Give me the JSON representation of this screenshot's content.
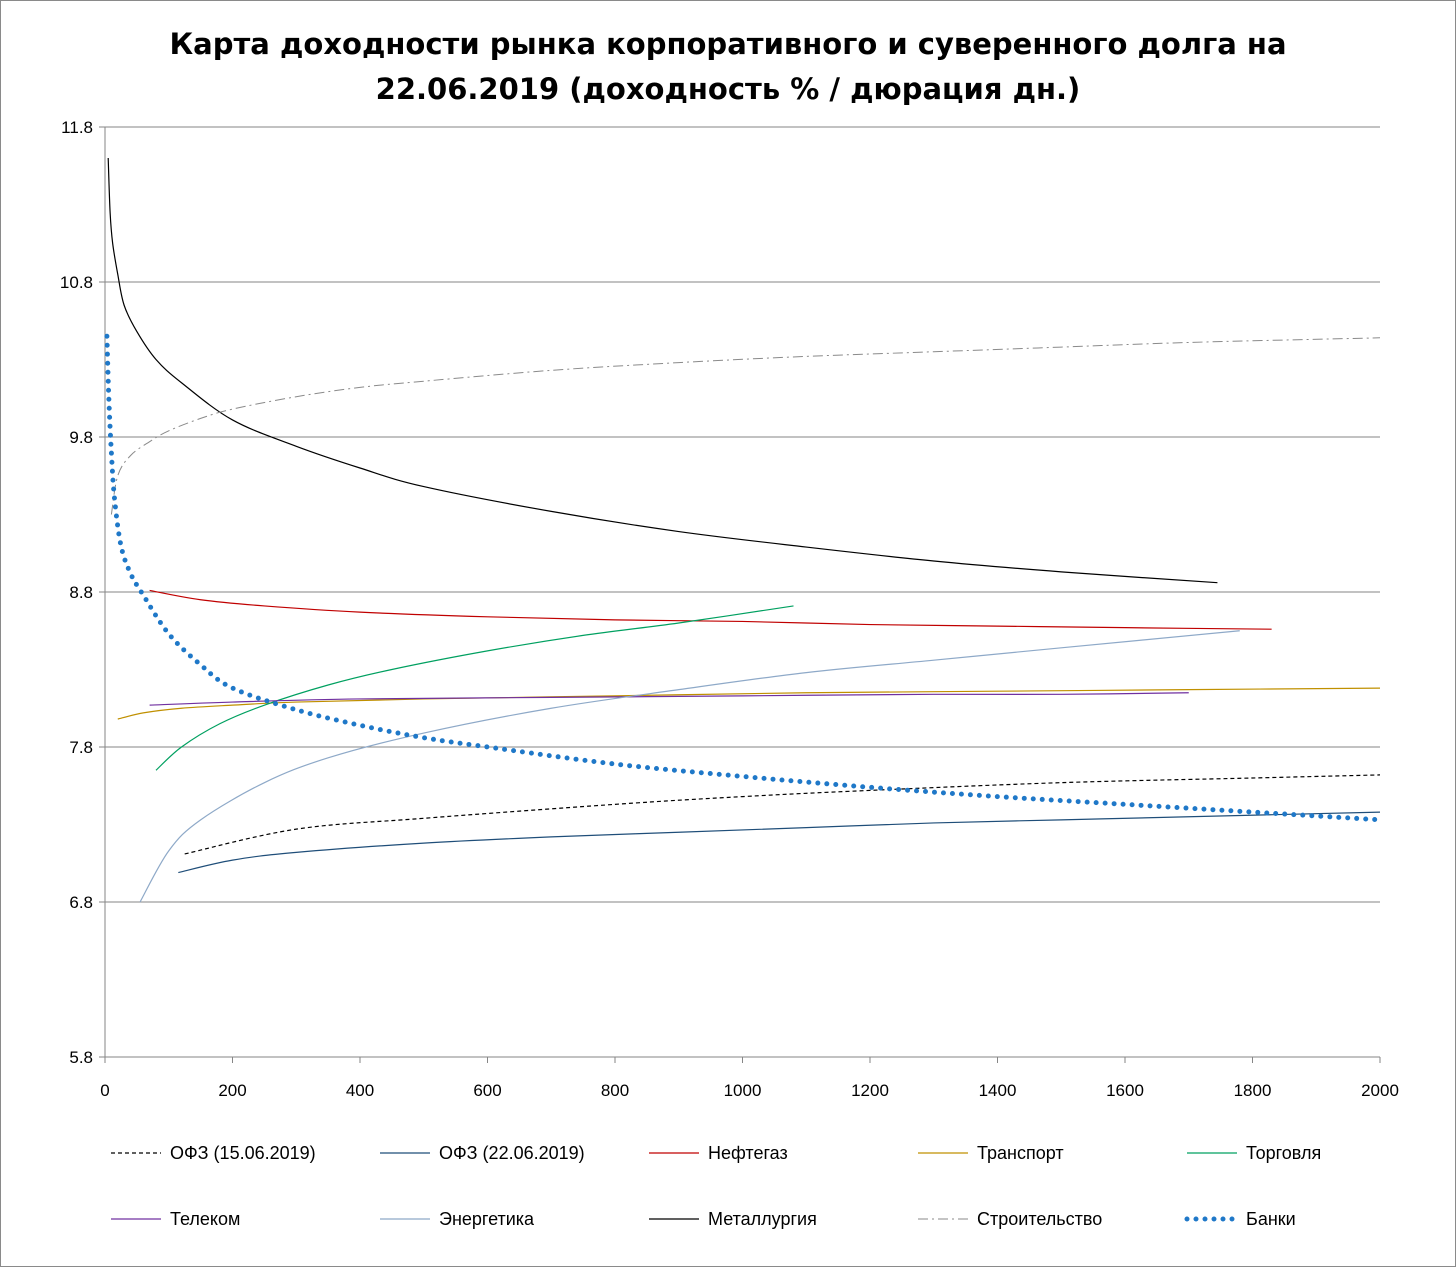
{
  "chart_data": {
    "type": "line",
    "title_lines": [
      "Карта доходности рынка корпоративного и суверенного долга на",
      "22.06.2019 (доходность % / дюрация дн.)"
    ],
    "xlim": [
      0,
      2000
    ],
    "ylim": [
      5.8,
      11.8
    ],
    "x_ticks": [
      "0",
      "200",
      "400",
      "600",
      "800",
      "1000",
      "1200",
      "1400",
      "1600",
      "1800",
      "2000"
    ],
    "y_ticks": [
      "5.8",
      "6.8",
      "7.8",
      "8.8",
      "9.8",
      "10.8",
      "11.8"
    ],
    "grid": "horizontal",
    "legend_position": "bottom",
    "series": [
      {
        "name": "ОФЗ (15.06.2019)",
        "color": "#000000",
        "style": "dashed",
        "x": [
          125,
          300,
          500,
          800,
          1000,
          1200,
          1500,
          1800,
          2000
        ],
        "y": [
          7.11,
          7.27,
          7.34,
          7.43,
          7.48,
          7.52,
          7.57,
          7.6,
          7.62
        ]
      },
      {
        "name": "ОФЗ (22.06.2019)",
        "color": "#1f4e79",
        "style": "solid",
        "x": [
          115,
          200,
          300,
          500,
          700,
          900,
          1100,
          1300,
          1500,
          1700,
          2000
        ],
        "y": [
          6.99,
          7.07,
          7.12,
          7.18,
          7.22,
          7.25,
          7.28,
          7.31,
          7.33,
          7.35,
          7.38
        ]
      },
      {
        "name": "Нефтегаз",
        "color": "#c00000",
        "style": "solid",
        "x": [
          70,
          150,
          250,
          400,
          600,
          800,
          1000,
          1200,
          1400,
          1600,
          1830
        ],
        "y": [
          8.81,
          8.75,
          8.71,
          8.67,
          8.64,
          8.62,
          8.61,
          8.59,
          8.58,
          8.57,
          8.56
        ]
      },
      {
        "name": "Транспорт",
        "color": "#c09000",
        "style": "solid",
        "x": [
          20,
          60,
          120,
          200,
          300,
          500,
          800,
          1100,
          1400,
          1700,
          2000
        ],
        "y": [
          7.98,
          8.02,
          8.05,
          8.07,
          8.09,
          8.11,
          8.13,
          8.15,
          8.16,
          8.17,
          8.18
        ]
      },
      {
        "name": "Торговля",
        "color": "#00a060",
        "style": "solid",
        "x": [
          80,
          120,
          180,
          250,
          350,
          450,
          600,
          750,
          900,
          1080
        ],
        "y": [
          7.65,
          7.8,
          7.95,
          8.07,
          8.2,
          8.3,
          8.42,
          8.52,
          8.6,
          8.71
        ]
      },
      {
        "name": "Телеком",
        "color": "#7030a0",
        "style": "solid",
        "x": [
          70,
          200,
          400,
          700,
          1000,
          1300,
          1500,
          1700
        ],
        "y": [
          8.07,
          8.09,
          8.11,
          8.12,
          8.13,
          8.14,
          8.14,
          8.15
        ]
      },
      {
        "name": "Энергетика",
        "color": "#8ea9c8",
        "style": "solid",
        "x": [
          55,
          100,
          150,
          250,
          350,
          500,
          700,
          900,
          1100,
          1300,
          1500,
          1780
        ],
        "y": [
          6.8,
          7.13,
          7.33,
          7.57,
          7.73,
          7.89,
          8.05,
          8.17,
          8.28,
          8.36,
          8.44,
          8.55
        ]
      },
      {
        "name": "Металлургия",
        "color": "#000000",
        "style": "solid",
        "x": [
          5,
          8,
          12,
          20,
          30,
          50,
          80,
          120,
          200,
          300,
          400,
          500,
          700,
          900,
          1100,
          1300,
          1500,
          1745
        ],
        "y": [
          11.6,
          11.25,
          11.05,
          10.85,
          10.65,
          10.48,
          10.3,
          10.15,
          9.91,
          9.74,
          9.6,
          9.48,
          9.32,
          9.19,
          9.09,
          9.0,
          8.93,
          8.86
        ]
      },
      {
        "name": "Строительство",
        "color": "#8a8a8a",
        "style": "dashdot",
        "x": [
          10,
          20,
          40,
          70,
          100,
          150,
          200,
          300,
          400,
          500,
          700,
          900,
          1100,
          1300,
          1500,
          1700,
          2000
        ],
        "y": [
          9.3,
          9.55,
          9.68,
          9.77,
          9.84,
          9.92,
          9.98,
          10.06,
          10.12,
          10.16,
          10.23,
          10.28,
          10.32,
          10.35,
          10.38,
          10.41,
          10.44
        ]
      },
      {
        "name": "Банки",
        "color": "#1f78c8",
        "style": "dotted",
        "x": [
          3,
          6,
          10,
          15,
          25,
          40,
          60,
          100,
          150,
          200,
          300,
          400,
          500,
          600,
          800,
          1000,
          1200,
          1400,
          1600,
          1800,
          2000
        ],
        "y": [
          10.45,
          10.05,
          9.7,
          9.4,
          9.1,
          8.92,
          8.78,
          8.53,
          8.33,
          8.18,
          8.04,
          7.94,
          7.86,
          7.8,
          7.69,
          7.61,
          7.54,
          7.48,
          7.43,
          7.38,
          7.33
        ]
      }
    ]
  }
}
